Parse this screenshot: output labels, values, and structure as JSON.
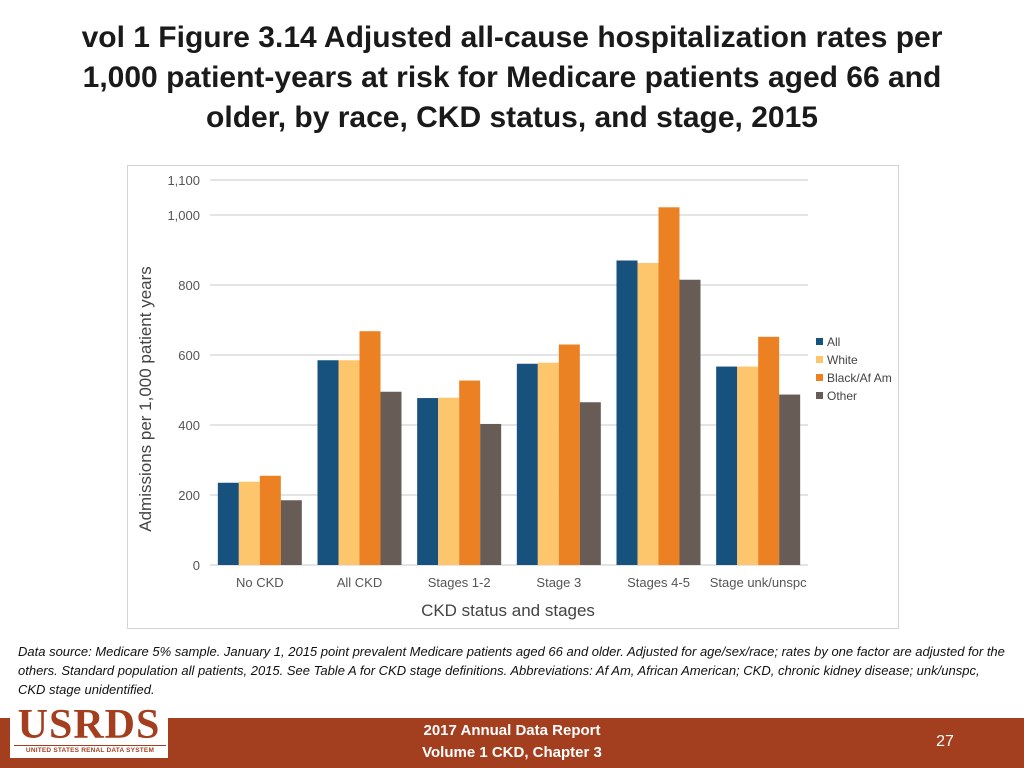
{
  "slide": {
    "title": "vol 1 Figure 3.14 Adjusted all-cause hospitalization rates per 1,000 patient-years at risk for Medicare patients aged 66 and older, by race, CKD status, and stage, 2015",
    "source_note": "Data source: Medicare 5% sample. January 1, 2015 point prevalent Medicare patients aged 66 and older. Adjusted for age/sex/race; rates by one factor are adjusted for the others. Standard population all patients, 2015. See Table A for CKD stage definitions. Abbreviations: Af Am, African American; CKD, chronic kidney disease; unk/unspc, CKD stage unidentified.",
    "footer_line1": "2017 Annual Data Report",
    "footer_line2": "Volume 1 CKD, Chapter 3",
    "page_number": "27",
    "logo_text": "USRDS",
    "logo_subtext": "UNITED STATES RENAL DATA SYSTEM"
  },
  "chart_data": {
    "type": "bar",
    "title": "",
    "xlabel": "CKD status and stages",
    "ylabel": "Admissions per 1,000 patient years",
    "ylim": [
      0,
      1100
    ],
    "yticks": [
      0,
      200,
      400,
      600,
      800,
      1000,
      1100
    ],
    "ytick_labels": [
      "0",
      "200",
      "400",
      "600",
      "800",
      "1,000",
      "1,100"
    ],
    "grid": true,
    "legend_position": "right",
    "categories": [
      "No CKD",
      "All CKD",
      "Stages 1-2",
      "Stage 3",
      "Stages 4-5",
      "Stage unk/unspc"
    ],
    "series": [
      {
        "name": "All",
        "color": "#17527f",
        "values": [
          235,
          585,
          477,
          575,
          870,
          567
        ]
      },
      {
        "name": "White",
        "color": "#fdc56c",
        "values": [
          238,
          585,
          478,
          578,
          863,
          567
        ]
      },
      {
        "name": "Black/Af Am",
        "color": "#ec8123",
        "values": [
          255,
          668,
          527,
          630,
          1022,
          652
        ]
      },
      {
        "name": "Other",
        "color": "#675d56",
        "values": [
          185,
          495,
          403,
          465,
          815,
          487
        ]
      }
    ]
  }
}
